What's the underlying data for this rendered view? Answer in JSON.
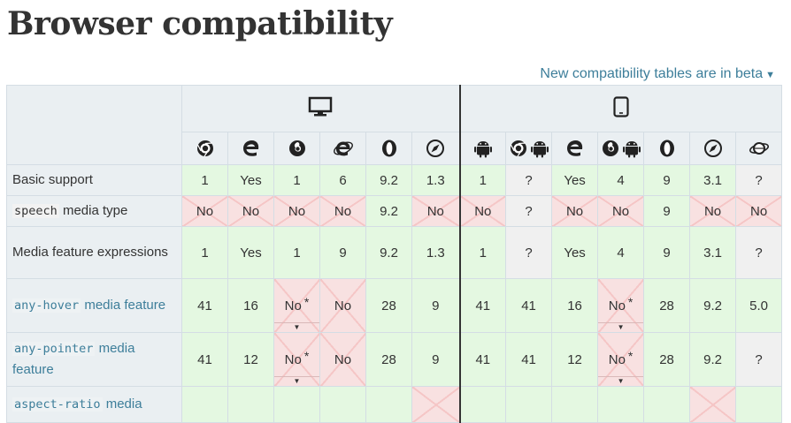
{
  "title": "Browser compatibility",
  "beta_link": "New compatibility tables are in beta",
  "platforms": [
    {
      "name": "desktop-icon",
      "span": 6
    },
    {
      "name": "mobile-icon",
      "span": 7
    }
  ],
  "browsers": [
    {
      "icon": "chrome-icon",
      "platform": "desktop"
    },
    {
      "icon": "edge-icon",
      "platform": "desktop"
    },
    {
      "icon": "firefox-icon",
      "platform": "desktop"
    },
    {
      "icon": "internet-explorer-icon",
      "platform": "desktop"
    },
    {
      "icon": "opera-icon",
      "platform": "desktop"
    },
    {
      "icon": "safari-icon",
      "platform": "desktop"
    },
    {
      "icon": "android-webview-icon",
      "platform": "mobile"
    },
    {
      "icon": "chrome-android-icon",
      "platform": "mobile"
    },
    {
      "icon": "edge-mobile-icon",
      "platform": "mobile"
    },
    {
      "icon": "firefox-android-icon",
      "platform": "mobile"
    },
    {
      "icon": "opera-android-icon",
      "platform": "mobile"
    },
    {
      "icon": "safari-ios-icon",
      "platform": "mobile"
    },
    {
      "icon": "samsung-internet-icon",
      "platform": "mobile"
    }
  ],
  "rows": [
    {
      "key": "basic",
      "feature": {
        "parts": [
          {
            "text": "Basic support",
            "code": false
          }
        ]
      },
      "link": false,
      "cells": [
        {
          "v": "1",
          "s": "yes"
        },
        {
          "v": "Yes",
          "s": "yes"
        },
        {
          "v": "1",
          "s": "yes"
        },
        {
          "v": "6",
          "s": "yes"
        },
        {
          "v": "9.2",
          "s": "yes"
        },
        {
          "v": "1.3",
          "s": "yes"
        },
        {
          "v": "1",
          "s": "yes"
        },
        {
          "v": "?",
          "s": "unk"
        },
        {
          "v": "Yes",
          "s": "yes"
        },
        {
          "v": "4",
          "s": "yes"
        },
        {
          "v": "9",
          "s": "yes"
        },
        {
          "v": "3.1",
          "s": "yes"
        },
        {
          "v": "?",
          "s": "unk"
        }
      ]
    },
    {
      "key": "speech",
      "feature": {
        "parts": [
          {
            "text": "speech",
            "code": true
          },
          {
            "text": " media type",
            "code": false
          }
        ]
      },
      "link": false,
      "cells": [
        {
          "v": "No",
          "s": "no"
        },
        {
          "v": "No",
          "s": "no"
        },
        {
          "v": "No",
          "s": "no"
        },
        {
          "v": "No",
          "s": "no"
        },
        {
          "v": "9.2",
          "s": "yes"
        },
        {
          "v": "No",
          "s": "no"
        },
        {
          "v": "No",
          "s": "no"
        },
        {
          "v": "?",
          "s": "unk"
        },
        {
          "v": "No",
          "s": "no"
        },
        {
          "v": "No",
          "s": "no"
        },
        {
          "v": "9",
          "s": "yes"
        },
        {
          "v": "No",
          "s": "no"
        },
        {
          "v": "No",
          "s": "no"
        }
      ]
    },
    {
      "key": "expr",
      "feature": {
        "parts": [
          {
            "text": "Media feature expressions",
            "code": false
          }
        ]
      },
      "link": false,
      "cells": [
        {
          "v": "1",
          "s": "yes"
        },
        {
          "v": "Yes",
          "s": "yes"
        },
        {
          "v": "1",
          "s": "yes"
        },
        {
          "v": "9",
          "s": "yes"
        },
        {
          "v": "9.2",
          "s": "yes"
        },
        {
          "v": "1.3",
          "s": "yes"
        },
        {
          "v": "1",
          "s": "yes"
        },
        {
          "v": "?",
          "s": "unk"
        },
        {
          "v": "Yes",
          "s": "yes"
        },
        {
          "v": "4",
          "s": "yes"
        },
        {
          "v": "9",
          "s": "yes"
        },
        {
          "v": "3.1",
          "s": "yes"
        },
        {
          "v": "?",
          "s": "unk"
        }
      ]
    },
    {
      "key": "hover",
      "feature": {
        "parts": [
          {
            "text": "any-hover",
            "code": true
          },
          {
            "text": " media feature",
            "code": false
          }
        ]
      },
      "link": true,
      "cells": [
        {
          "v": "41",
          "s": "yes"
        },
        {
          "v": "16",
          "s": "yes"
        },
        {
          "v": "No",
          "s": "no",
          "note": "*"
        },
        {
          "v": "No",
          "s": "no"
        },
        {
          "v": "28",
          "s": "yes"
        },
        {
          "v": "9",
          "s": "yes"
        },
        {
          "v": "41",
          "s": "yes"
        },
        {
          "v": "41",
          "s": "yes"
        },
        {
          "v": "16",
          "s": "yes"
        },
        {
          "v": "No",
          "s": "no",
          "note": "*"
        },
        {
          "v": "28",
          "s": "yes"
        },
        {
          "v": "9.2",
          "s": "yes"
        },
        {
          "v": "5.0",
          "s": "yes"
        }
      ]
    },
    {
      "key": "pointer",
      "feature": {
        "parts": [
          {
            "text": "any-pointer",
            "code": true
          },
          {
            "text": " media feature",
            "code": false
          }
        ]
      },
      "link": true,
      "cells": [
        {
          "v": "41",
          "s": "yes"
        },
        {
          "v": "12",
          "s": "yes"
        },
        {
          "v": "No",
          "s": "no",
          "note": "*"
        },
        {
          "v": "No",
          "s": "no"
        },
        {
          "v": "28",
          "s": "yes"
        },
        {
          "v": "9",
          "s": "yes"
        },
        {
          "v": "41",
          "s": "yes"
        },
        {
          "v": "41",
          "s": "yes"
        },
        {
          "v": "12",
          "s": "yes"
        },
        {
          "v": "No",
          "s": "no",
          "note": "*"
        },
        {
          "v": "28",
          "s": "yes"
        },
        {
          "v": "9.2",
          "s": "yes"
        },
        {
          "v": "?",
          "s": "unk"
        }
      ]
    },
    {
      "key": "aspect",
      "feature": {
        "parts": [
          {
            "text": "aspect-ratio",
            "code": true
          },
          {
            "text": " media",
            "code": false
          }
        ]
      },
      "link": true,
      "cells": [
        {
          "v": "",
          "s": "yes"
        },
        {
          "v": "",
          "s": "yes"
        },
        {
          "v": "",
          "s": "yes"
        },
        {
          "v": "",
          "s": "yes"
        },
        {
          "v": "",
          "s": "yes"
        },
        {
          "v": "",
          "s": "no"
        },
        {
          "v": "",
          "s": "yes"
        },
        {
          "v": "",
          "s": "yes"
        },
        {
          "v": "",
          "s": "yes"
        },
        {
          "v": "",
          "s": "yes"
        },
        {
          "v": "",
          "s": "yes"
        },
        {
          "v": "",
          "s": "no"
        },
        {
          "v": "",
          "s": "yes"
        }
      ]
    }
  ]
}
